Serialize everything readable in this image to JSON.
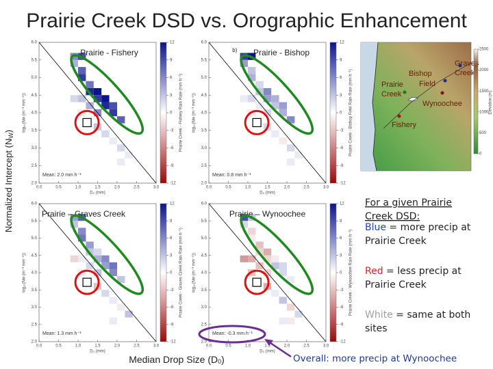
{
  "title": "Prairie Creek DSD vs. Orographic Enhancement",
  "ylabel": {
    "pre": "Normalized Intercept (N",
    "sub": "W",
    "post": ")"
  },
  "xlabel": {
    "pre": "Median Drop Size (D",
    "sub": "0",
    "post": ")"
  },
  "map": {
    "labels": [
      [
        "Graves",
        "Creek"
      ],
      [
        "Bishop",
        "Field"
      ],
      [
        "Prairie",
        "Creek"
      ],
      [
        "Wynoochee"
      ],
      [
        "Fishery"
      ]
    ],
    "colorbar_label": "Elevation (m)",
    "elev_lim": [
      0,
      2500
    ],
    "elev_ticks": [
      2500,
      2000,
      1500,
      1000,
      500,
      0
    ]
  },
  "notes": {
    "intro": [
      "For a given Prairie",
      "Creek DSD:"
    ],
    "items": [
      {
        "key": "Blue",
        "rest": " = more precip at",
        "line2": "Prairie Creek",
        "color": "#1f3fbf"
      },
      {
        "key": "Red",
        "rest": " = less precip at",
        "line2": "Prairie Creek",
        "color": "#e02020"
      },
      {
        "key": "White",
        "rest": " = same at both",
        "line2": "sites",
        "color": "#a0a0a0"
      }
    ],
    "overall": "Overall: more precip at Wynoochee"
  },
  "chart_data": [
    {
      "type": "heatmap",
      "title": "Prairie - Fishery",
      "annotation": "Mean: 2.0 mm h⁻¹",
      "xlabel": "D₀ (mm)",
      "ylabel": "log₁₀(Nw (m⁻³ mm⁻¹))",
      "colorbar_label": "Prairie Creek - Fishery Rain Rate (mm h⁻¹)",
      "colormap": "bwr",
      "xlim": [
        0,
        3
      ],
      "ylim": [
        2,
        6
      ],
      "clim": [
        -12,
        12
      ],
      "xticks": [
        {
          "value": 0,
          "label": "0.0"
        },
        {
          "value": 0.5,
          "label": "0.5"
        },
        {
          "value": 1,
          "label": "1.0"
        },
        {
          "value": 1.5,
          "label": "1.5"
        },
        {
          "value": 2,
          "label": "2.0"
        },
        {
          "value": 2.5,
          "label": "2.5"
        },
        {
          "value": 3,
          "label": "3.0"
        }
      ],
      "yticks": [
        {
          "value": 2,
          "label": "2.0"
        },
        {
          "value": 2.5,
          "label": "2.5"
        },
        {
          "value": 3,
          "label": "3.0"
        },
        {
          "value": 3.5,
          "label": "3.5"
        },
        {
          "value": 4,
          "label": "4.0"
        },
        {
          "value": 4.5,
          "label": "4.5"
        },
        {
          "value": 5,
          "label": "5.0"
        },
        {
          "value": 5.5,
          "label": "5.5"
        },
        {
          "value": 6,
          "label": "6.0"
        }
      ],
      "cticks": [
        12,
        9,
        6,
        3,
        0,
        -3,
        -6,
        -9,
        -12
      ],
      "x": [
        0.9,
        1.1,
        0.9,
        1.1,
        1.1,
        1.3,
        1.3,
        1.5,
        0.9,
        1.1,
        1.5,
        1.7,
        1.3,
        1.7,
        1.9,
        1.1,
        1.5,
        1.9,
        2.1,
        1.5,
        1.7,
        1.9,
        2.1,
        2.3,
        1.9,
        2.1
      ],
      "y": [
        5.6,
        5.6,
        5.4,
        5.2,
        5.0,
        4.8,
        4.6,
        4.6,
        4.4,
        4.4,
        4.4,
        4.4,
        4.2,
        4.2,
        4.2,
        4.0,
        4.0,
        4.0,
        3.8,
        3.6,
        3.4,
        3.2,
        3.0,
        2.8,
        2.6,
        2.6
      ],
      "values": [
        6,
        9,
        4,
        8,
        10,
        7,
        11,
        12,
        2,
        3,
        10,
        12,
        4,
        11,
        9,
        -1,
        6,
        10,
        8,
        3,
        2,
        1,
        2,
        1,
        0,
        1
      ]
    },
    {
      "type": "heatmap",
      "title": "Prairie - Bishop",
      "panel_label": "b)",
      "annotation": "Mean: 0.8 mm h⁻¹",
      "xlabel": "D₀ (mm)",
      "ylabel": "log₁₀(Nw (m⁻³ mm⁻¹))",
      "colorbar_label": "Prairie Creek - Bishop Field Rain Rate (mm h⁻¹)",
      "colormap": "bwr",
      "xlim": [
        0,
        3
      ],
      "ylim": [
        2,
        6
      ],
      "clim": [
        -12,
        12
      ],
      "xticks": [
        {
          "value": 0,
          "label": "0.0"
        },
        {
          "value": 0.5,
          "label": "0.5"
        },
        {
          "value": 1,
          "label": "1.0"
        },
        {
          "value": 1.5,
          "label": "1.5"
        },
        {
          "value": 2,
          "label": "2.0"
        },
        {
          "value": 2.5,
          "label": "2.5"
        },
        {
          "value": 3,
          "label": "3.0"
        }
      ],
      "yticks": [
        {
          "value": 2,
          "label": "2.0"
        },
        {
          "value": 2.5,
          "label": "2.5"
        },
        {
          "value": 3,
          "label": "3.0"
        },
        {
          "value": 3.5,
          "label": "3.5"
        },
        {
          "value": 4,
          "label": "4.0"
        },
        {
          "value": 4.5,
          "label": "4.5"
        },
        {
          "value": 5,
          "label": "5.0"
        },
        {
          "value": 5.5,
          "label": "5.5"
        },
        {
          "value": 6,
          "label": "6.0"
        }
      ],
      "cticks": [
        12,
        9,
        6,
        3,
        0,
        -3,
        -6,
        -9,
        -12
      ],
      "x": [
        0.9,
        1.1,
        0.9,
        1.1,
        1.1,
        1.3,
        1.3,
        1.5,
        0.9,
        1.1,
        1.5,
        1.7,
        1.3,
        1.7,
        1.9,
        1.1,
        1.5,
        1.9,
        2.1,
        1.5,
        1.7,
        1.9,
        2.1,
        2.3,
        1.9,
        2.1
      ],
      "y": [
        5.6,
        5.6,
        5.4,
        5.2,
        5.0,
        4.8,
        4.6,
        4.6,
        4.4,
        4.4,
        4.4,
        4.4,
        4.2,
        4.2,
        4.2,
        4.0,
        4.0,
        4.0,
        3.8,
        3.6,
        3.4,
        3.2,
        3.0,
        2.8,
        2.6,
        2.6
      ],
      "values": [
        10,
        12,
        5,
        3,
        4,
        2,
        3,
        6,
        1,
        2,
        5,
        4,
        1,
        3,
        5,
        -1,
        2,
        4,
        6,
        2,
        1,
        -1,
        2,
        1,
        0,
        1
      ]
    },
    {
      "type": "heatmap",
      "title": "Prairie – Graves Creek",
      "annotation": "Mean: 1.3 mm h⁻¹",
      "xlabel": "D₀ (mm)",
      "ylabel": "log₁₀(Nw (m⁻³ mm⁻¹))",
      "colorbar_label": "Prairie Creek - Graves Creek Rain Rate (mm h⁻¹)",
      "colormap": "bwr",
      "xlim": [
        0,
        3
      ],
      "ylim": [
        2,
        6
      ],
      "clim": [
        -12,
        12
      ],
      "xticks": [
        {
          "value": 0,
          "label": "0.0"
        },
        {
          "value": 0.5,
          "label": "0.5"
        },
        {
          "value": 1,
          "label": "1.0"
        },
        {
          "value": 1.5,
          "label": "1.5"
        },
        {
          "value": 2,
          "label": "2.0"
        },
        {
          "value": 2.5,
          "label": "2.5"
        },
        {
          "value": 3,
          "label": "3.0"
        }
      ],
      "yticks": [
        {
          "value": 2,
          "label": "2.0"
        },
        {
          "value": 2.5,
          "label": "2.5"
        },
        {
          "value": 3,
          "label": "3.0"
        },
        {
          "value": 3.5,
          "label": "3.5"
        },
        {
          "value": 4,
          "label": "4.0"
        },
        {
          "value": 4.5,
          "label": "4.5"
        },
        {
          "value": 5,
          "label": "5.0"
        },
        {
          "value": 5.5,
          "label": "5.5"
        },
        {
          "value": 6,
          "label": "6.0"
        }
      ],
      "cticks": [
        12,
        9,
        6,
        3,
        0,
        -3,
        -6,
        -9,
        -12
      ],
      "x": [
        0.9,
        1.1,
        0.9,
        1.1,
        1.1,
        1.3,
        1.3,
        1.5,
        0.9,
        1.1,
        1.5,
        1.7,
        1.3,
        1.7,
        1.9,
        1.1,
        1.5,
        1.9,
        2.1,
        1.5,
        1.7,
        1.9,
        2.1,
        2.3,
        1.9,
        2.1
      ],
      "y": [
        5.6,
        5.6,
        5.4,
        5.2,
        5.0,
        4.8,
        4.6,
        4.6,
        4.4,
        4.4,
        4.4,
        4.4,
        4.2,
        4.2,
        4.2,
        4.0,
        4.0,
        4.0,
        3.8,
        3.6,
        3.4,
        3.2,
        3.0,
        2.8,
        2.6,
        2.6
      ],
      "values": [
        5,
        8,
        3,
        6,
        7,
        5,
        3,
        2,
        -2,
        1,
        4,
        6,
        2,
        5,
        7,
        1,
        3,
        6,
        3,
        -3,
        2,
        1,
        -1,
        3,
        1,
        0
      ]
    },
    {
      "type": "heatmap",
      "title": "Prairie – Wynoochee",
      "annotation": "Mean: -0.3 mm h⁻¹",
      "xlabel": "D₀ (mm)",
      "ylabel": "log₁₀(Nw (m⁻³ mm⁻¹))",
      "colorbar_label": "Prairie Creek - Wynoochee Rain Rate (mm h⁻¹)",
      "colormap": "bwr",
      "xlim": [
        0,
        3
      ],
      "ylim": [
        2,
        6
      ],
      "clim": [
        -12,
        12
      ],
      "xticks": [
        {
          "value": 0,
          "label": "0.0"
        },
        {
          "value": 0.5,
          "label": "0.5"
        },
        {
          "value": 1,
          "label": "1.0"
        },
        {
          "value": 1.5,
          "label": "1.5"
        },
        {
          "value": 2,
          "label": "2.0"
        },
        {
          "value": 2.5,
          "label": "2.5"
        },
        {
          "value": 3,
          "label": "3.0"
        }
      ],
      "yticks": [
        {
          "value": 2,
          "label": "2.0"
        },
        {
          "value": 2.5,
          "label": "2.5"
        },
        {
          "value": 3,
          "label": "3.0"
        },
        {
          "value": 3.5,
          "label": "3.5"
        },
        {
          "value": 4,
          "label": "4.0"
        },
        {
          "value": 4.5,
          "label": "4.5"
        },
        {
          "value": 5,
          "label": "5.0"
        },
        {
          "value": 5.5,
          "label": "5.5"
        },
        {
          "value": 6,
          "label": "6.0"
        }
      ],
      "cticks": [
        12,
        9,
        6,
        3,
        0,
        -3,
        -6,
        -9,
        -12
      ],
      "x": [
        0.9,
        1.1,
        0.9,
        1.1,
        1.1,
        1.3,
        1.3,
        1.5,
        0.9,
        1.1,
        1.5,
        1.7,
        1.3,
        1.7,
        1.9,
        1.1,
        1.5,
        1.9,
        2.1,
        1.5,
        1.7,
        1.9,
        2.1,
        2.3,
        1.9,
        2.1
      ],
      "y": [
        5.6,
        5.6,
        5.4,
        5.2,
        5.0,
        4.8,
        4.6,
        4.6,
        4.4,
        4.4,
        4.4,
        4.4,
        4.2,
        4.2,
        4.2,
        4.0,
        4.0,
        4.0,
        3.8,
        3.6,
        3.4,
        3.2,
        3.0,
        2.8,
        2.6,
        2.6
      ],
      "values": [
        9,
        3,
        2,
        -2,
        -1,
        -3,
        -2,
        -4,
        -5,
        -4,
        -2,
        -1,
        -3,
        3,
        2,
        -3,
        -2,
        2,
        1,
        -4,
        1,
        3,
        -2,
        2,
        1,
        -1
      ]
    }
  ]
}
